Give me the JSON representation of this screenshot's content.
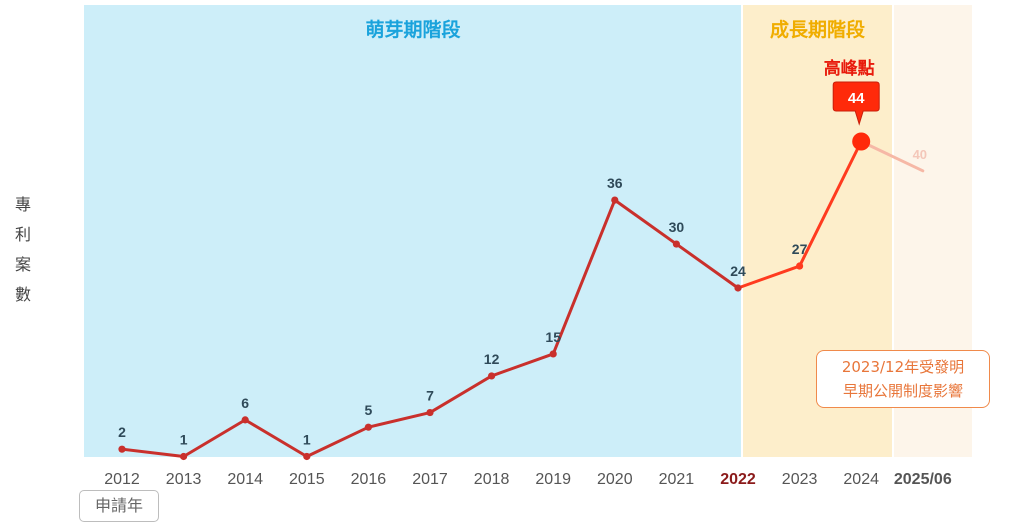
{
  "chart_data": {
    "type": "line",
    "ylabel": "專利案數",
    "xlabel": "申請年",
    "categories": [
      "2012",
      "2013",
      "2014",
      "2015",
      "2016",
      "2017",
      "2018",
      "2019",
      "2020",
      "2021",
      "2022",
      "2023",
      "2024",
      "2025/06"
    ],
    "values": [
      2,
      1,
      6,
      1,
      5,
      7,
      12,
      15,
      36,
      30,
      24,
      27,
      44,
      40
    ],
    "value_labels": [
      "2",
      "1",
      "6",
      "1",
      "5",
      "7",
      "12",
      "15",
      "36",
      "30",
      "24",
      "27",
      "44",
      "40"
    ],
    "ylim": [
      0,
      52
    ],
    "grid": false,
    "phases": [
      {
        "label": "萌芽期階段",
        "from": "2012",
        "to": "2022",
        "color": "#cdeef9",
        "label_color": "#1aa3dc"
      },
      {
        "label": "成長期階段",
        "from": "2022",
        "to": "2024",
        "color": "#fdeecb",
        "label_color": "#f0ad00"
      },
      {
        "label": "",
        "from": "2024",
        "to": "2025/06",
        "color": "#fdf5ea"
      }
    ],
    "peak": {
      "label": "高峰點",
      "category": "2024",
      "value": "44"
    },
    "highlight_ticks": {
      "2022": "#8b1a1a",
      "2025/06": "#555555"
    },
    "colors": {
      "line": "#c9302c",
      "line_growth": "#ff3b1f",
      "peak": "#ff2a0a",
      "partial": "#f6b8a6"
    }
  },
  "annotation": {
    "line1": "2023/12年受發明",
    "line2": "早期公開制度影響"
  }
}
